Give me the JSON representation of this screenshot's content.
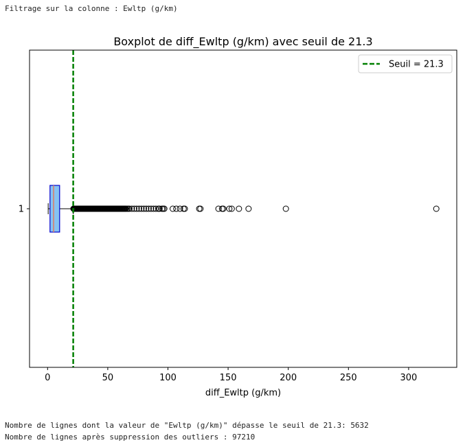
{
  "header": {
    "filter_text": "Filtrage sur la colonne : Ewltp (g/km)"
  },
  "footer": {
    "exceed_text": "Nombre de lignes dont la valeur de \"Ewltp (g/km)\" dépasse le seuil de 21.3: 5632",
    "remaining_text": "Nombre de lignes après suppression des outliers : 97210"
  },
  "chart_data": {
    "type": "boxplot",
    "title": "Boxplot de diff_Ewltp (g/km) avec seuil de 21.3",
    "xlabel": "diff_Ewltp (g/km)",
    "ylabel": "",
    "xlim": [
      -15,
      340
    ],
    "xticks": [
      0,
      50,
      100,
      150,
      200,
      250,
      300
    ],
    "ytick_labels": [
      "1"
    ],
    "legend_position": "upper right",
    "grid": false,
    "box": {
      "category": "1",
      "whisker_low": 0.5,
      "q1": 2,
      "median": 5,
      "q3": 10,
      "whisker_high": 21.3,
      "fill_color": "#87c3f2",
      "edge_color": "#0000cc",
      "median_color": "#e07a5f"
    },
    "outliers": [
      21.5,
      22,
      22.5,
      23,
      23.5,
      24,
      24.5,
      25,
      25.5,
      26,
      26.5,
      27,
      27.5,
      28,
      28.5,
      29,
      29.5,
      30,
      30.5,
      31,
      31.5,
      32,
      32.5,
      33,
      33.5,
      34,
      34.5,
      35,
      35.5,
      36,
      36.5,
      37,
      37.5,
      38,
      38.5,
      39,
      39.5,
      40,
      40.5,
      41,
      41.5,
      42,
      42.5,
      43,
      43.5,
      44,
      44.5,
      45,
      45.5,
      46,
      46.5,
      47,
      47.5,
      48,
      48.5,
      49,
      49.5,
      50,
      50.5,
      51,
      51.5,
      52,
      52.5,
      53,
      53.5,
      54,
      54.5,
      55,
      55.5,
      56,
      56.5,
      57,
      57.5,
      58,
      58.5,
      59,
      59.5,
      60,
      60.5,
      61,
      61.5,
      62,
      62.5,
      63,
      63.5,
      64,
      64.5,
      65,
      66,
      67,
      68,
      70,
      72,
      74,
      76,
      78,
      80,
      82,
      84,
      86,
      88,
      90,
      92,
      93,
      95,
      96,
      97,
      104,
      107,
      110,
      113,
      114,
      126,
      127,
      142,
      145,
      146,
      151,
      153,
      159,
      167,
      198,
      323
    ],
    "threshold": {
      "value": 21.3,
      "label": "Seuil = 21.3",
      "color": "#007f00"
    }
  }
}
